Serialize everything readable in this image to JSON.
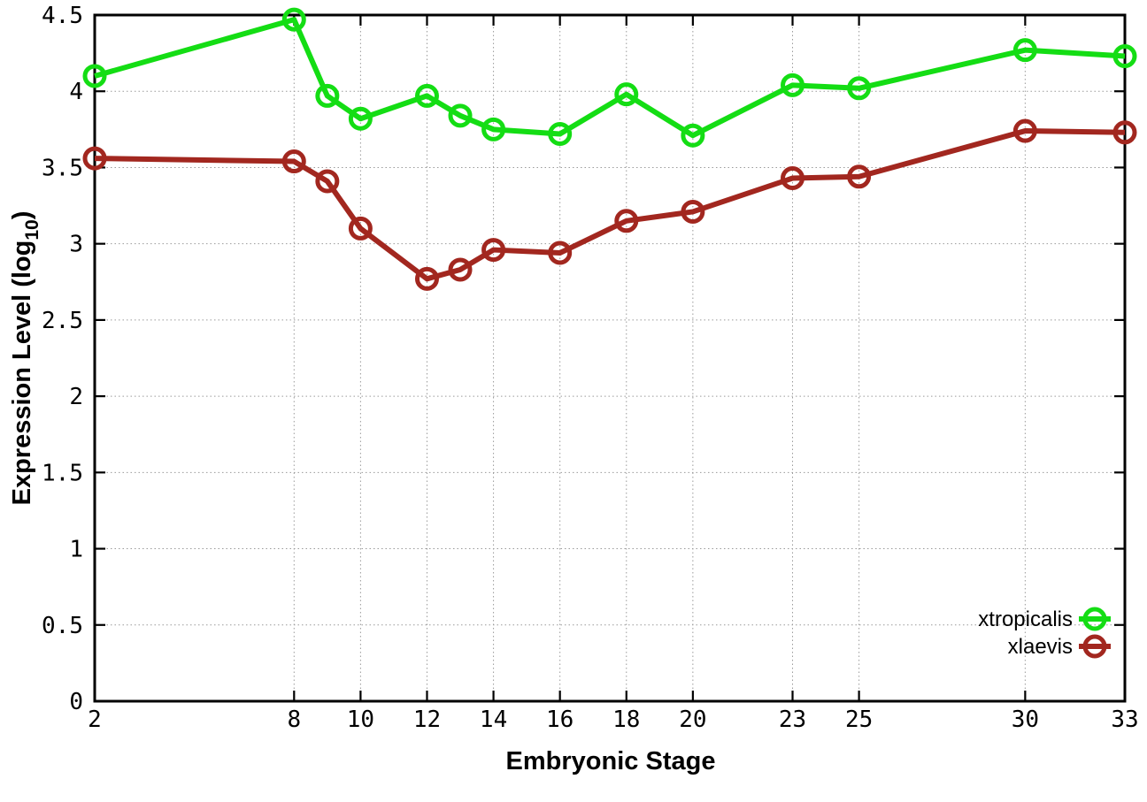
{
  "chart_data": {
    "type": "line",
    "title": "",
    "xlabel": "Embryonic Stage",
    "ylabel": "Expression Level (log10)",
    "ylabel_parts": {
      "pre": "Expression Level (log",
      "sub": "10",
      "post": ")"
    },
    "x": [
      2,
      8,
      9,
      10,
      12,
      13,
      14,
      16,
      18,
      20,
      23,
      25,
      30,
      33
    ],
    "xlim": [
      2,
      33
    ],
    "ylim": [
      0,
      4.5
    ],
    "xticks": [
      2,
      8,
      10,
      12,
      14,
      16,
      18,
      20,
      23,
      25,
      30,
      33
    ],
    "yticks": [
      0,
      0.5,
      1,
      1.5,
      2,
      2.5,
      3,
      3.5,
      4,
      4.5
    ],
    "grid": true,
    "legend_position": "inside-bottom-right",
    "series": [
      {
        "name": "xtropicalis",
        "color": "#14dd14",
        "marker": "open-circle",
        "values": [
          4.1,
          4.47,
          3.97,
          3.82,
          3.97,
          3.84,
          3.75,
          3.72,
          3.98,
          3.71,
          4.04,
          4.02,
          4.27,
          4.23
        ]
      },
      {
        "name": "xlaevis",
        "color": "#a2271f",
        "marker": "open-circle",
        "values": [
          3.56,
          3.54,
          3.41,
          3.1,
          2.77,
          2.83,
          2.96,
          2.94,
          3.15,
          3.21,
          3.43,
          3.44,
          3.74,
          3.73
        ]
      }
    ]
  },
  "colors": {
    "background": "#ffffff",
    "axis": "#000000",
    "grid": "#9a9a9a"
  }
}
